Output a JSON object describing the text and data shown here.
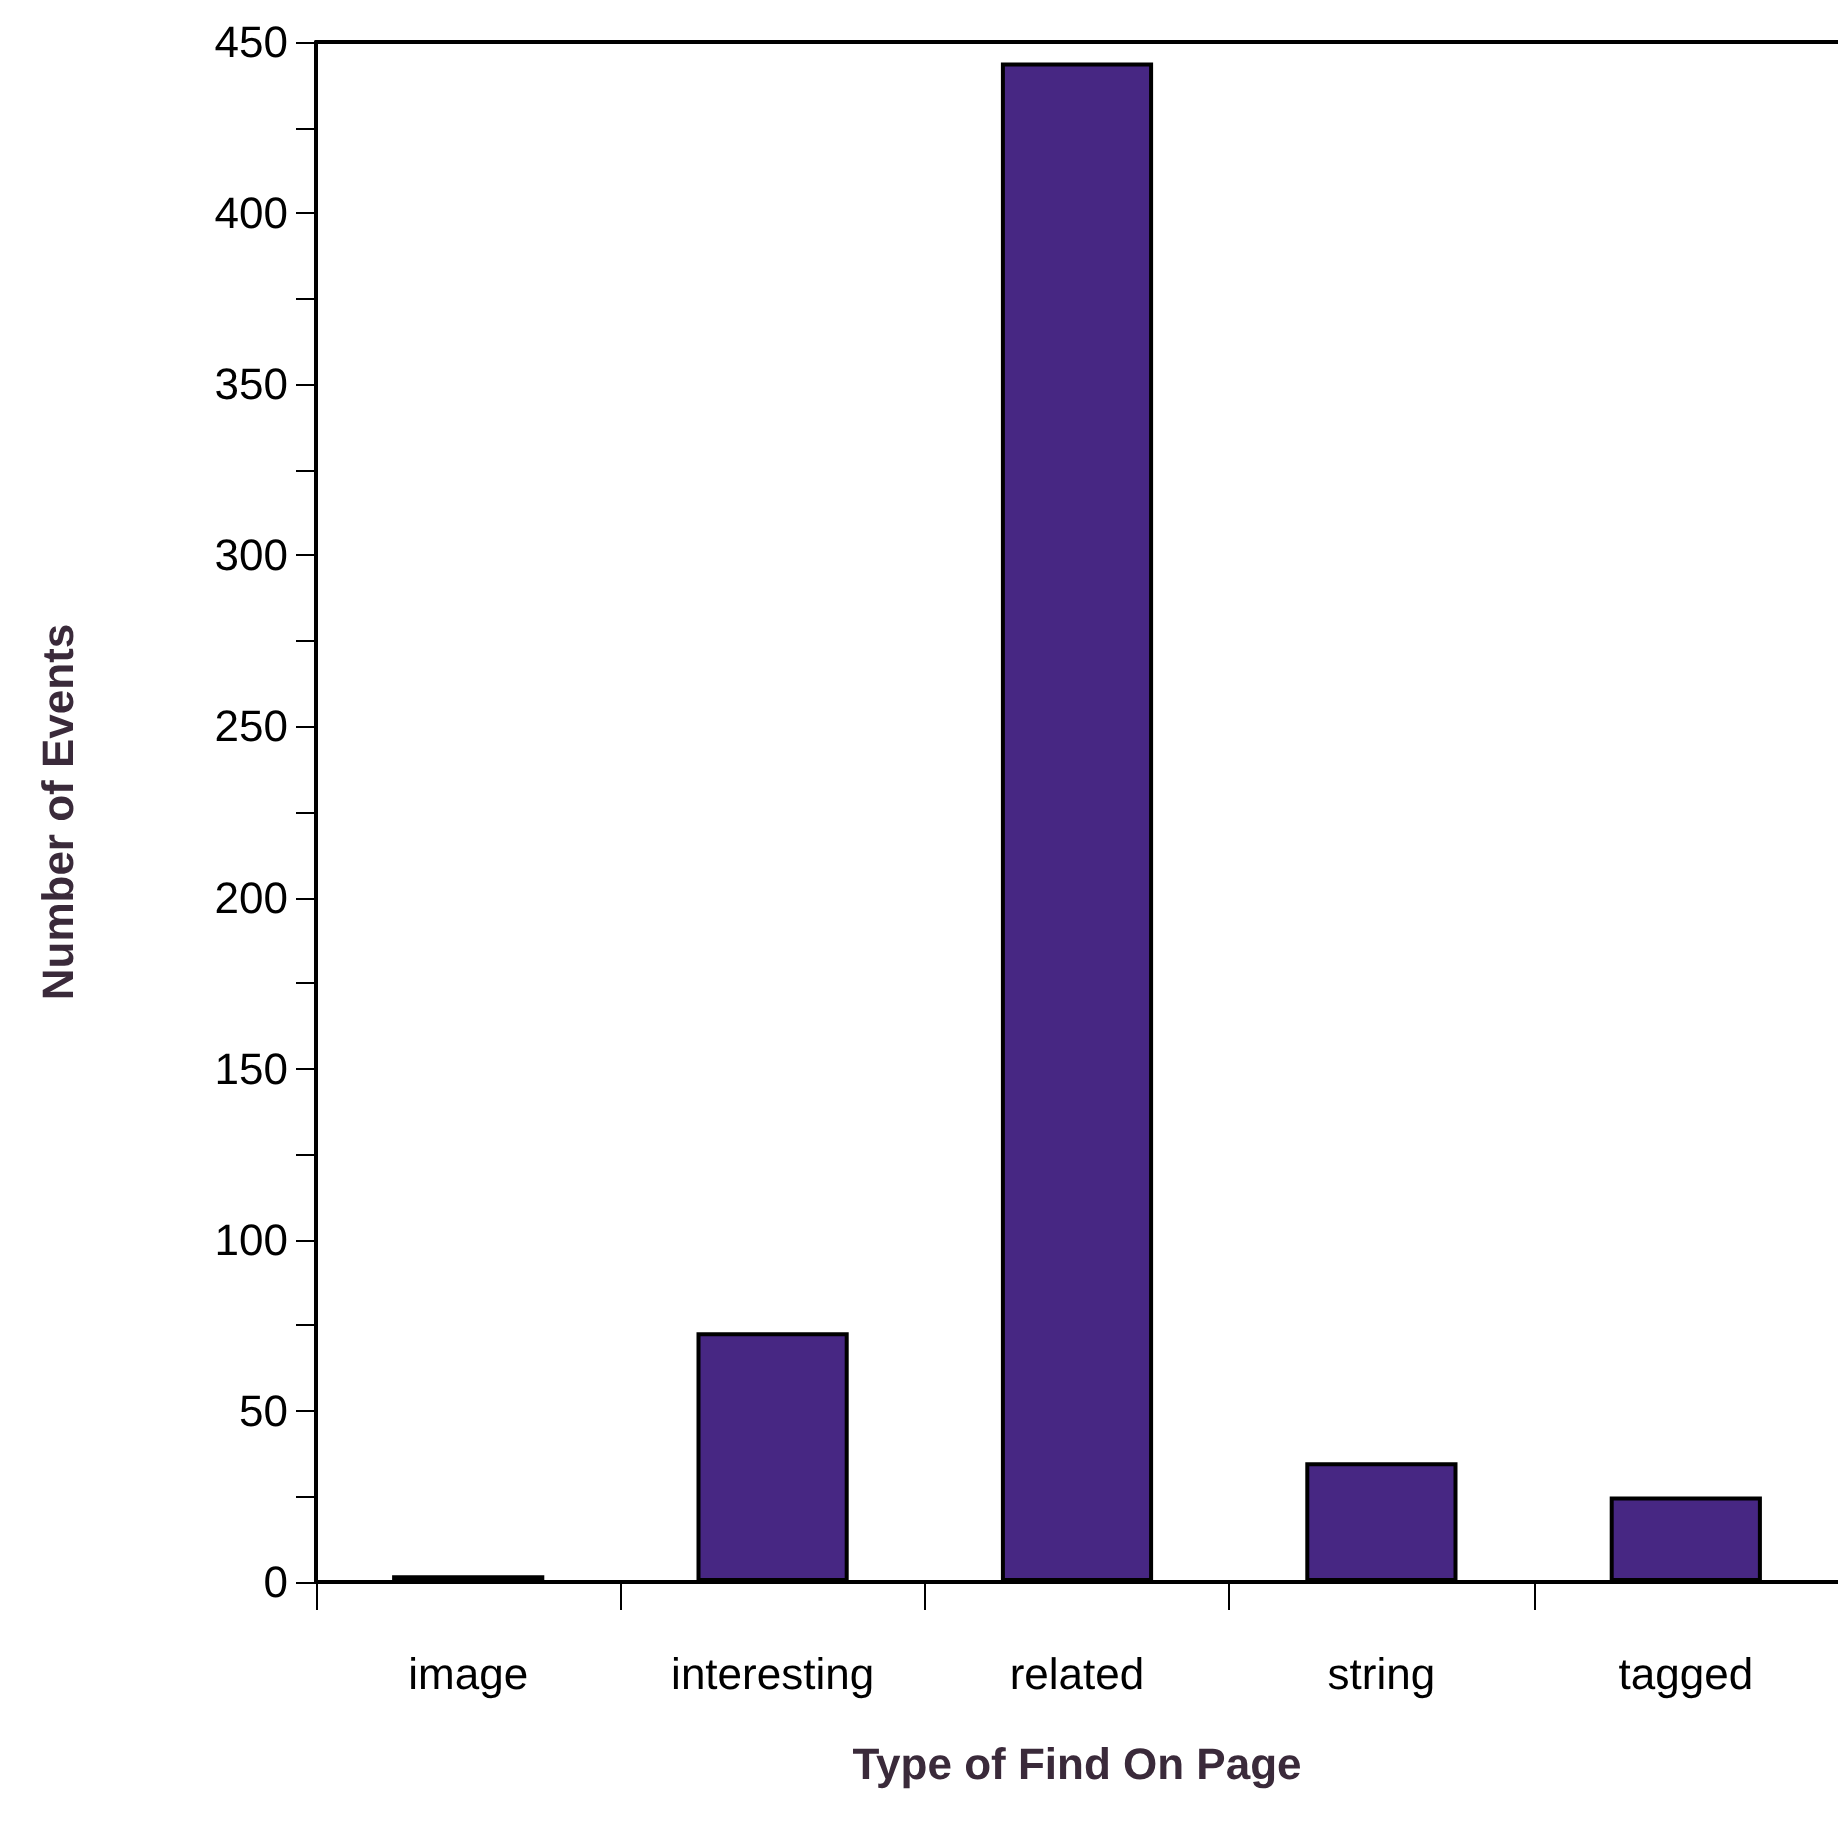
{
  "chart_data": {
    "type": "bar",
    "xlabel": "Type of Find On Page",
    "ylabel": "Number of Events",
    "categories": [
      "image",
      "interesting",
      "related",
      "string",
      "tagged"
    ],
    "values": [
      2,
      73,
      444,
      35,
      25
    ],
    "color": "#472783",
    "ylim": [
      0,
      450
    ],
    "yticks": [
      0,
      {
        "value": 25,
        "label": null
      },
      50,
      {
        "value": 75,
        "label": null
      },
      100,
      {
        "value": 125,
        "label": null
      },
      150,
      {
        "value": 175,
        "label": null
      },
      200,
      {
        "value": 225,
        "label": null
      },
      250,
      {
        "value": 275,
        "label": null
      },
      300,
      {
        "value": 325,
        "label": null
      },
      350,
      {
        "value": 375,
        "label": null
      },
      400,
      {
        "value": 425,
        "label": null
      },
      450
    ]
  }
}
